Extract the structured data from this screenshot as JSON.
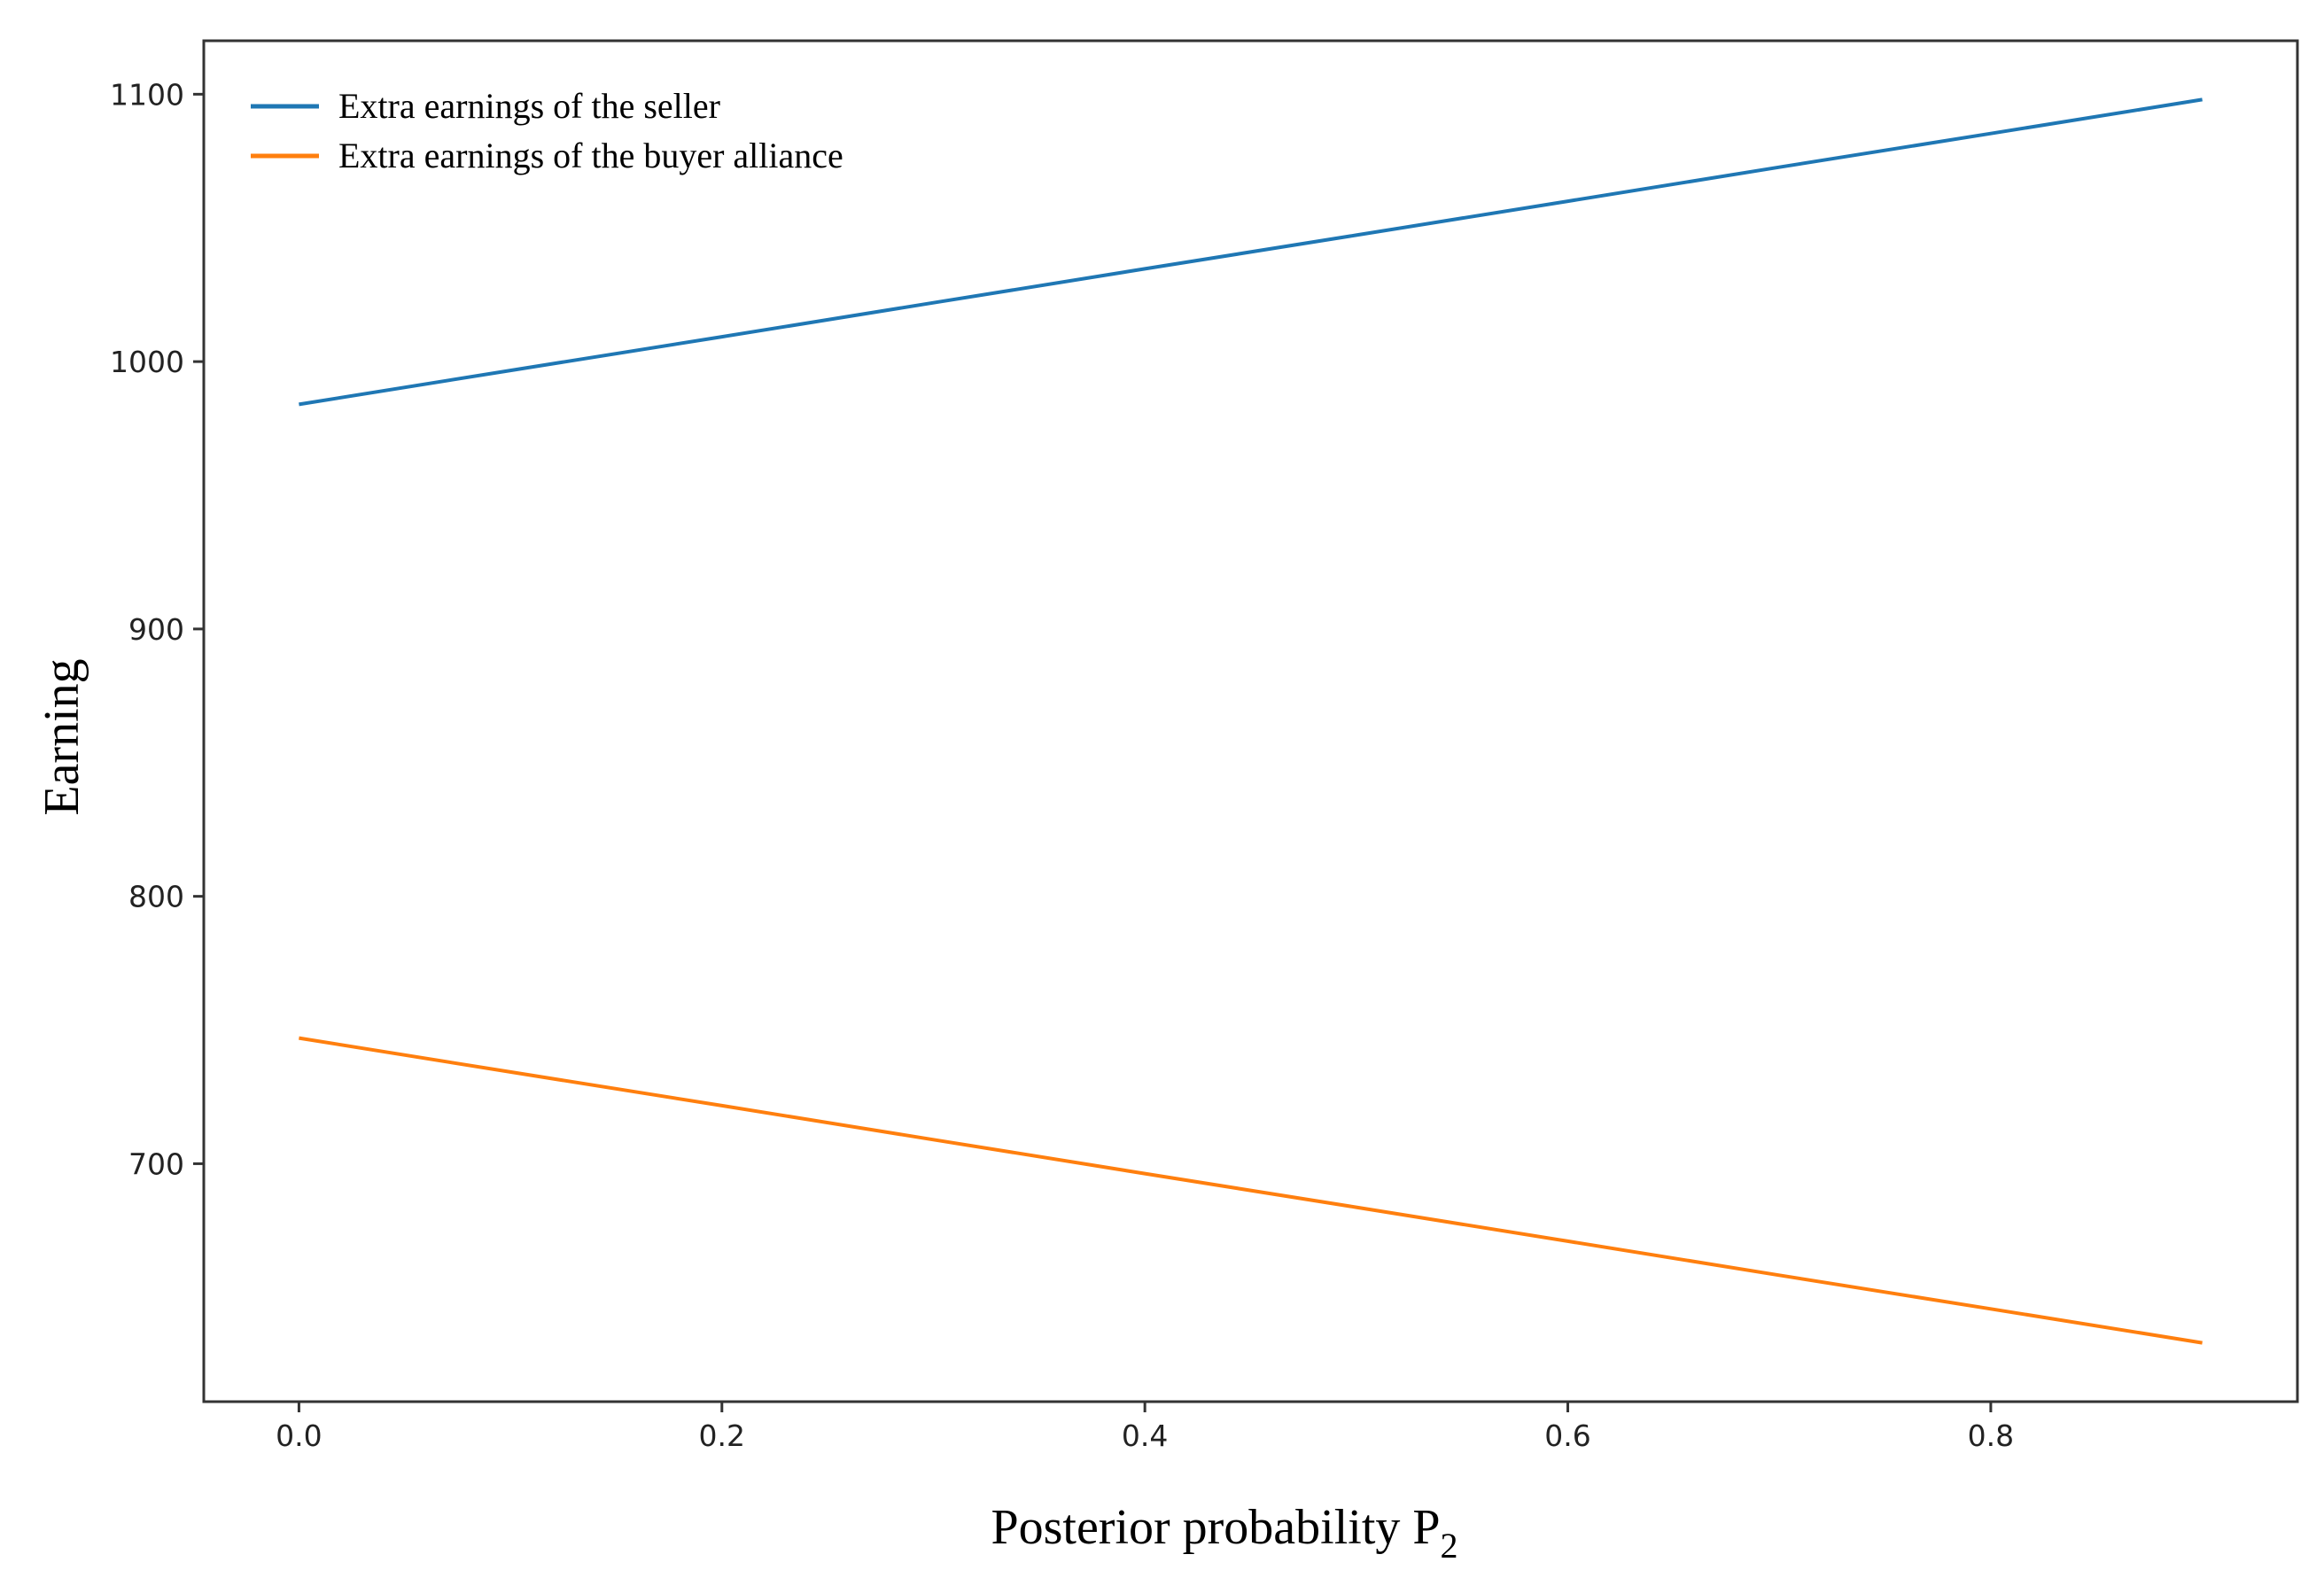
{
  "chart_data": {
    "type": "line",
    "title": "",
    "xlabel": "Posterior probability P",
    "xlabel_subscript": "2",
    "ylabel": "Earning",
    "xlim": [
      -0.045,
      0.945
    ],
    "ylim": [
      611,
      1120
    ],
    "x": [
      0.0,
      0.1,
      0.2,
      0.3,
      0.4,
      0.5,
      0.6,
      0.7,
      0.8,
      0.9
    ],
    "x_ticks": [
      0.0,
      0.2,
      0.4,
      0.6,
      0.8
    ],
    "x_tick_labels": [
      "0.0",
      "0.2",
      "0.4",
      "0.6",
      "0.8"
    ],
    "y_ticks": [
      700,
      800,
      900,
      1000,
      1100
    ],
    "y_tick_labels": [
      "700",
      "800",
      "900",
      "1000",
      "1100"
    ],
    "grid": false,
    "legend_position": "top-left",
    "series": [
      {
        "name": "Extra earnings of the seller",
        "color": "#1f77b4",
        "values": [
          984,
          996.7,
          1009.3,
          1022,
          1034.7,
          1047.3,
          1060,
          1072.7,
          1085.3,
          1098
        ]
      },
      {
        "name": "Extra earnings of the buyer alliance",
        "color": "#ff7f0e",
        "values": [
          747,
          734.3,
          721.7,
          709,
          696.3,
          683.7,
          671,
          658.3,
          645.7,
          633
        ]
      }
    ]
  }
}
